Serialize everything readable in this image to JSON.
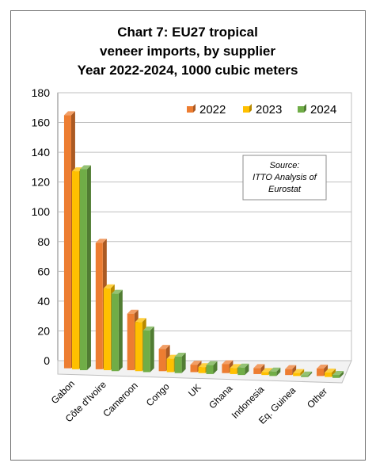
{
  "chart_data": {
    "type": "bar",
    "title": [
      "Chart 7: EU27 tropical",
      "veneer imports, by supplier",
      "Year 2022-2024, 1000 cubic meters"
    ],
    "categories": [
      "Gabon",
      "Côte d'Ivoire",
      "Cameroon",
      "Congo",
      "UK",
      "Ghana",
      "Indonesia",
      "Eq. Guinea",
      "Other"
    ],
    "series": [
      {
        "name": "2022",
        "values": [
          170,
          85,
          38,
          15,
          5,
          6,
          4,
          4,
          5
        ],
        "color": "#ED7D31"
      },
      {
        "name": "2023",
        "values": [
          133,
          55,
          33,
          9,
          4,
          4,
          2,
          2,
          3
        ],
        "color": "#FFC000"
      },
      {
        "name": "2024",
        "values": [
          135,
          52,
          28,
          11,
          6,
          5,
          3,
          1,
          2
        ],
        "color": "#70AD47"
      }
    ],
    "xlabel": "",
    "ylabel": "",
    "ylim": [
      0,
      180
    ],
    "yticks": [
      0,
      20,
      40,
      60,
      80,
      100,
      120,
      140,
      160,
      180
    ],
    "grid": true,
    "legend_position": "top-right",
    "annotation": [
      "Source:",
      "ITTO Analysis of",
      "Eurostat"
    ]
  }
}
